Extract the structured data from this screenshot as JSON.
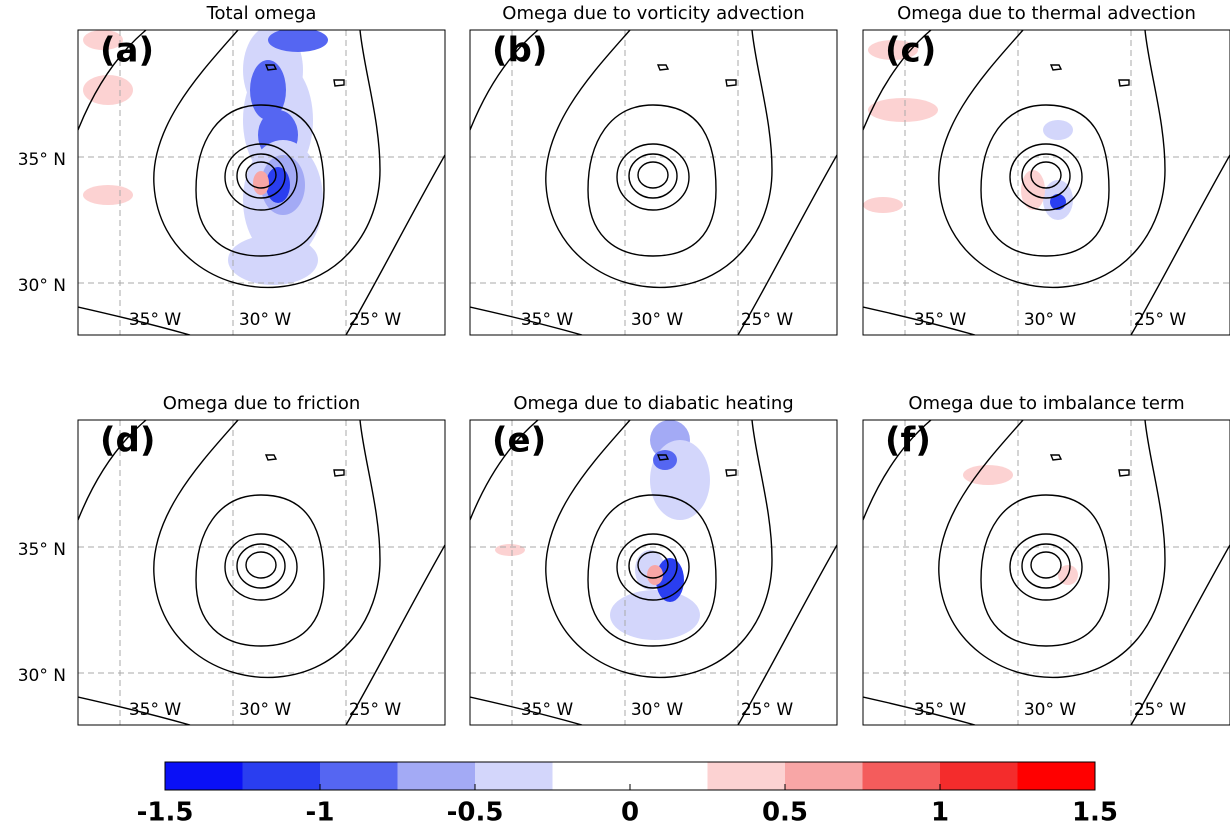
{
  "panels": [
    {
      "title": "Total omega",
      "label": "(a)",
      "lat_labels": [
        "35° N",
        "30° N"
      ],
      "lon_labels": [
        "35° W",
        "30° W",
        "25° W"
      ]
    },
    {
      "title": "Omega due to vorticity advection",
      "label": "(b)",
      "lon_labels": [
        "35° W",
        "30° W",
        "25° W"
      ]
    },
    {
      "title": "Omega due to thermal advection",
      "label": "(c)",
      "lon_labels": [
        "35° W",
        "30° W",
        "25° W"
      ]
    },
    {
      "title": "Omega due to friction",
      "label": "(d)",
      "lat_labels": [
        "35° N",
        "30° N"
      ],
      "lon_labels": [
        "35° W",
        "30° W",
        "25° W"
      ]
    },
    {
      "title": "Omega due to diabatic heating",
      "label": "(e)",
      "lon_labels": [
        "35° W",
        "30° W",
        "25° W"
      ]
    },
    {
      "title": "Omega due to imbalance term",
      "label": "(f)",
      "lon_labels": [
        "35° W",
        "30° W",
        "25° W"
      ]
    }
  ],
  "colorbar": {
    "range": [
      -1.5,
      1.5
    ],
    "ticks": [
      -1.5,
      -1,
      -0.5,
      0,
      0.5,
      1,
      1.5
    ],
    "colors": [
      "#0a10f6",
      "#2a3ef0",
      "#5566f2",
      "#a3aaf5",
      "#d3d6fb",
      "#ffffff",
      "#ffffff",
      "#fcd2d2",
      "#f8a6a6",
      "#f45c5c",
      "#f42c2c",
      "#ff0000"
    ]
  }
}
